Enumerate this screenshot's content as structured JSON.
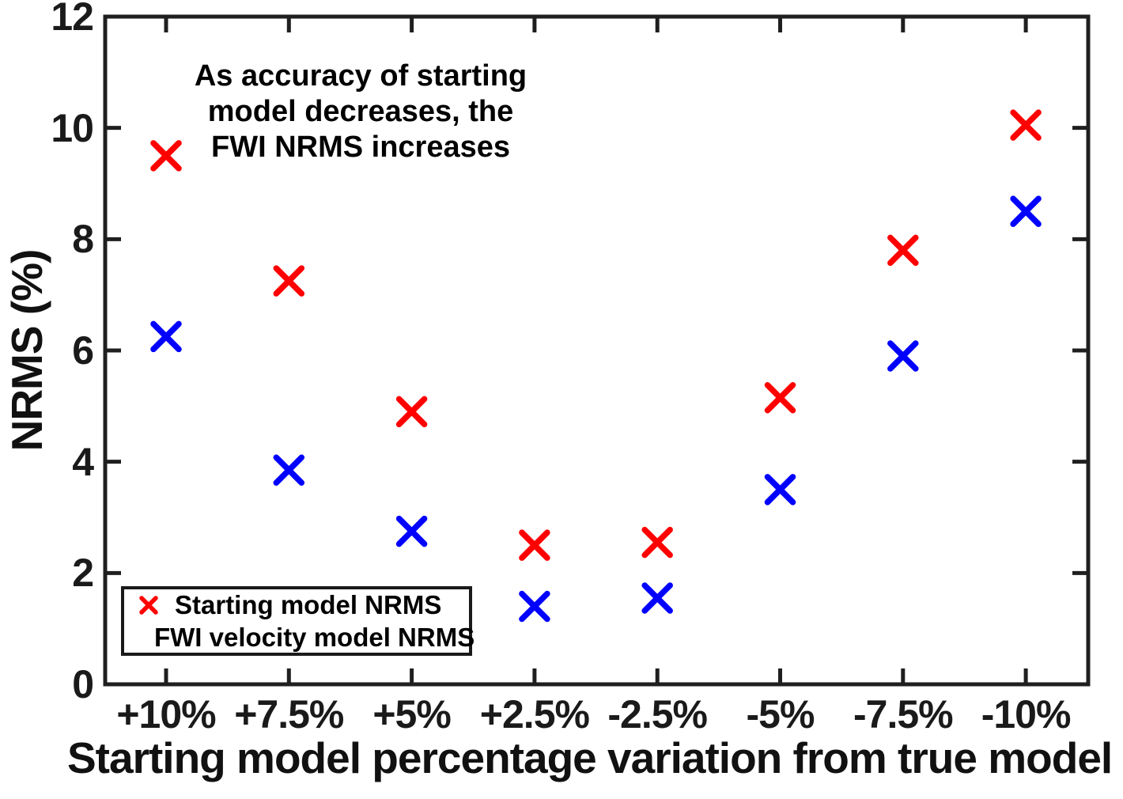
{
  "chart_data": {
    "type": "scatter",
    "title": "",
    "xlabel": "Starting model percentage variation from true model",
    "ylabel": "NRMS (%)",
    "categories": [
      "+10%",
      "+7.5%",
      "+5%",
      "+2.5%",
      "-2.5%",
      "-5%",
      "-7.5%",
      "-10%"
    ],
    "series": [
      {
        "name": "Starting model NRMS",
        "marker": "x",
        "color": "#ff0000",
        "values": [
          9.5,
          7.25,
          4.9,
          2.5,
          2.55,
          5.15,
          7.8,
          10.05
        ]
      },
      {
        "name": "FWI velocity model NRMS",
        "marker": "x",
        "color": "#0000ff",
        "values": [
          6.25,
          3.85,
          2.75,
          1.4,
          1.55,
          3.5,
          5.9,
          8.5
        ]
      }
    ],
    "ylim": [
      0,
      12
    ],
    "yticks": [
      0,
      2,
      4,
      6,
      8,
      10,
      12
    ],
    "grid": false,
    "legend_position": "lower-left",
    "axis_color": "#1f1f1f",
    "tick_label_color": "#1a1a1a",
    "annotation": {
      "lines": [
        "As accuracy of starting",
        "model decreases, the",
        "FWI NRMS increases"
      ]
    }
  }
}
